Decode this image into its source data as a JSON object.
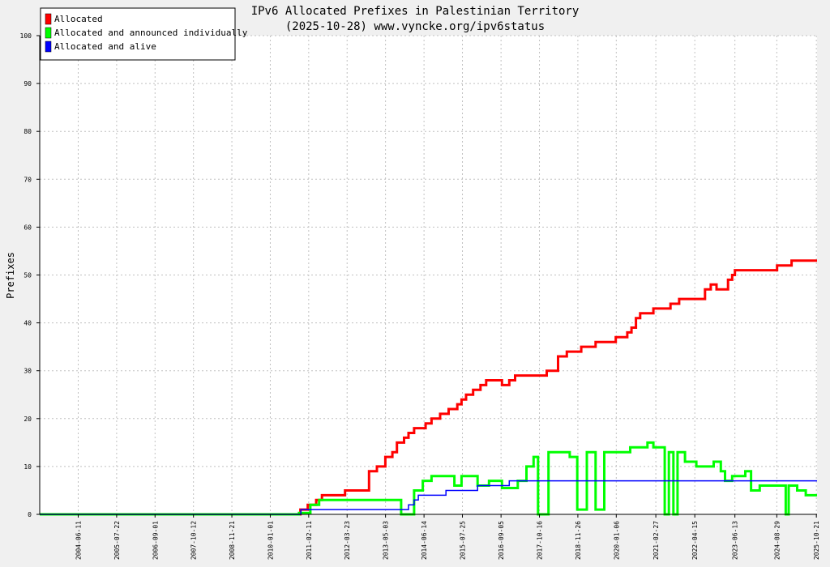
{
  "chart_data": {
    "type": "line",
    "title": "IPv6 Allocated Prefixes in Palestinian Territory",
    "subtitle": "(2025-10-28) www.vyncke.org/ipv6status",
    "ylabel": "Prefixes",
    "xlabel": "",
    "ylim": [
      0,
      100
    ],
    "xlim": [
      "2003-05-01",
      "2025-10-28"
    ],
    "y_ticks": [
      0,
      10,
      20,
      30,
      40,
      50,
      60,
      70,
      80,
      90,
      100
    ],
    "x_ticks": [
      "2004-06-11",
      "2005-07-22",
      "2006-09-01",
      "2007-10-12",
      "2008-11-21",
      "2010-01-01",
      "2011-02-11",
      "2012-03-23",
      "2013-05-03",
      "2014-06-14",
      "2015-07-25",
      "2016-09-05",
      "2017-10-16",
      "2018-11-26",
      "2020-01-06",
      "2021-02-27",
      "2022-04-15",
      "2023-06-13",
      "2024-08-29",
      "2025-10-21"
    ],
    "grid": true,
    "legend_position": "top-left",
    "series": [
      {
        "name": "Allocated",
        "color": "#ff0000",
        "points": [
          [
            "2003-05-01",
            0
          ],
          [
            "2010-11-15",
            0
          ],
          [
            "2010-11-15",
            1
          ],
          [
            "2011-02-01",
            1
          ],
          [
            "2011-02-01",
            2
          ],
          [
            "2011-05-01",
            2
          ],
          [
            "2011-05-01",
            3
          ],
          [
            "2011-07-01",
            3
          ],
          [
            "2011-07-01",
            4
          ],
          [
            "2012-03-01",
            4
          ],
          [
            "2012-03-01",
            5
          ],
          [
            "2012-11-10",
            5
          ],
          [
            "2012-11-10",
            9
          ],
          [
            "2013-02-01",
            9
          ],
          [
            "2013-02-01",
            10
          ],
          [
            "2013-05-01",
            10
          ],
          [
            "2013-05-01",
            12
          ],
          [
            "2013-07-15",
            12
          ],
          [
            "2013-07-15",
            13
          ],
          [
            "2013-09-01",
            13
          ],
          [
            "2013-09-01",
            15
          ],
          [
            "2013-11-15",
            15
          ],
          [
            "2013-11-15",
            16
          ],
          [
            "2014-01-01",
            16
          ],
          [
            "2014-01-01",
            17
          ],
          [
            "2014-03-01",
            17
          ],
          [
            "2014-03-01",
            18
          ],
          [
            "2014-07-01",
            18
          ],
          [
            "2014-07-01",
            19
          ],
          [
            "2014-09-01",
            19
          ],
          [
            "2014-09-01",
            20
          ],
          [
            "2014-12-01",
            20
          ],
          [
            "2014-12-01",
            21
          ],
          [
            "2015-03-01",
            21
          ],
          [
            "2015-03-01",
            22
          ],
          [
            "2015-06-01",
            22
          ],
          [
            "2015-06-01",
            23
          ],
          [
            "2015-07-15",
            23
          ],
          [
            "2015-07-15",
            24
          ],
          [
            "2015-09-01",
            24
          ],
          [
            "2015-09-01",
            25
          ],
          [
            "2015-11-15",
            25
          ],
          [
            "2015-11-15",
            26
          ],
          [
            "2016-02-01",
            26
          ],
          [
            "2016-02-01",
            27
          ],
          [
            "2016-04-01",
            27
          ],
          [
            "2016-04-01",
            28
          ],
          [
            "2016-09-15",
            28
          ],
          [
            "2016-09-15",
            27
          ],
          [
            "2016-12-01",
            27
          ],
          [
            "2016-12-01",
            28
          ],
          [
            "2017-02-01",
            28
          ],
          [
            "2017-02-01",
            29
          ],
          [
            "2018-01-01",
            29
          ],
          [
            "2018-01-01",
            30
          ],
          [
            "2018-05-01",
            30
          ],
          [
            "2018-05-01",
            33
          ],
          [
            "2018-08-01",
            33
          ],
          [
            "2018-08-01",
            34
          ],
          [
            "2019-01-01",
            34
          ],
          [
            "2019-01-01",
            35
          ],
          [
            "2019-06-01",
            35
          ],
          [
            "2019-06-01",
            36
          ],
          [
            "2020-01-01",
            36
          ],
          [
            "2020-01-01",
            37
          ],
          [
            "2020-05-01",
            37
          ],
          [
            "2020-05-01",
            38
          ],
          [
            "2020-06-15",
            38
          ],
          [
            "2020-06-15",
            39
          ],
          [
            "2020-08-01",
            39
          ],
          [
            "2020-08-01",
            41
          ],
          [
            "2020-09-15",
            41
          ],
          [
            "2020-09-15",
            42
          ],
          [
            "2021-02-01",
            42
          ],
          [
            "2021-02-01",
            43
          ],
          [
            "2021-08-01",
            43
          ],
          [
            "2021-08-01",
            44
          ],
          [
            "2021-11-01",
            44
          ],
          [
            "2021-11-01",
            45
          ],
          [
            "2022-08-01",
            45
          ],
          [
            "2022-08-01",
            47
          ],
          [
            "2022-10-01",
            47
          ],
          [
            "2022-10-01",
            48
          ],
          [
            "2022-12-01",
            48
          ],
          [
            "2022-12-01",
            47
          ],
          [
            "2023-04-01",
            47
          ],
          [
            "2023-04-01",
            49
          ],
          [
            "2023-05-15",
            49
          ],
          [
            "2023-05-15",
            50
          ],
          [
            "2023-06-13",
            50
          ],
          [
            "2023-06-13",
            51
          ],
          [
            "2024-09-01",
            51
          ],
          [
            "2024-09-01",
            52
          ],
          [
            "2025-02-01",
            52
          ],
          [
            "2025-02-01",
            53
          ],
          [
            "2025-10-28",
            53
          ]
        ]
      },
      {
        "name": "Allocated and announced individually",
        "color": "#00ff00",
        "points": [
          [
            "2003-05-01",
            0
          ],
          [
            "2010-11-01",
            0
          ],
          [
            "2010-11-01",
            0.3
          ],
          [
            "2011-03-01",
            0.3
          ],
          [
            "2011-03-01",
            2
          ],
          [
            "2011-06-01",
            2
          ],
          [
            "2011-06-01",
            3
          ],
          [
            "2013-10-15",
            3
          ],
          [
            "2013-10-15",
            0
          ],
          [
            "2014-03-01",
            0
          ],
          [
            "2014-03-01",
            5
          ],
          [
            "2014-06-01",
            5
          ],
          [
            "2014-06-01",
            7
          ],
          [
            "2014-09-01",
            7
          ],
          [
            "2014-09-01",
            8
          ],
          [
            "2015-05-01",
            8
          ],
          [
            "2015-05-01",
            6
          ],
          [
            "2015-07-15",
            6
          ],
          [
            "2015-07-15",
            8
          ],
          [
            "2016-01-01",
            8
          ],
          [
            "2016-01-01",
            6
          ],
          [
            "2016-05-01",
            6
          ],
          [
            "2016-05-01",
            7
          ],
          [
            "2016-09-15",
            7
          ],
          [
            "2016-09-15",
            5.5
          ],
          [
            "2017-03-01",
            5.5
          ],
          [
            "2017-03-01",
            7
          ],
          [
            "2017-06-01",
            7
          ],
          [
            "2017-06-01",
            10
          ],
          [
            "2017-08-15",
            10
          ],
          [
            "2017-08-15",
            12
          ],
          [
            "2017-10-01",
            12
          ],
          [
            "2017-10-01",
            0
          ],
          [
            "2018-01-20",
            0
          ],
          [
            "2018-01-20",
            13
          ],
          [
            "2018-09-01",
            13
          ],
          [
            "2018-09-01",
            12
          ],
          [
            "2018-11-20",
            12
          ],
          [
            "2018-11-20",
            1
          ],
          [
            "2019-03-01",
            1
          ],
          [
            "2019-03-01",
            13
          ],
          [
            "2019-06-01",
            13
          ],
          [
            "2019-06-01",
            1
          ],
          [
            "2019-09-01",
            1
          ],
          [
            "2019-09-01",
            13
          ],
          [
            "2020-06-01",
            13
          ],
          [
            "2020-06-01",
            14
          ],
          [
            "2020-12-01",
            14
          ],
          [
            "2020-12-01",
            15
          ],
          [
            "2021-02-01",
            15
          ],
          [
            "2021-02-01",
            14
          ],
          [
            "2021-06-01",
            14
          ],
          [
            "2021-06-01",
            0
          ],
          [
            "2021-07-15",
            0
          ],
          [
            "2021-07-15",
            13
          ],
          [
            "2021-09-01",
            13
          ],
          [
            "2021-09-01",
            0
          ],
          [
            "2021-10-15",
            0
          ],
          [
            "2021-10-15",
            13
          ],
          [
            "2022-01-01",
            13
          ],
          [
            "2022-01-01",
            11
          ],
          [
            "2022-05-01",
            11
          ],
          [
            "2022-05-01",
            10
          ],
          [
            "2022-11-01",
            10
          ],
          [
            "2022-11-01",
            11
          ],
          [
            "2023-01-15",
            11
          ],
          [
            "2023-01-15",
            9
          ],
          [
            "2023-03-01",
            9
          ],
          [
            "2023-03-01",
            7
          ],
          [
            "2023-05-15",
            7
          ],
          [
            "2023-05-15",
            8
          ],
          [
            "2023-10-01",
            8
          ],
          [
            "2023-10-01",
            9
          ],
          [
            "2023-12-01",
            9
          ],
          [
            "2023-12-01",
            5
          ],
          [
            "2024-03-01",
            5
          ],
          [
            "2024-03-01",
            6
          ],
          [
            "2024-12-01",
            6
          ],
          [
            "2024-12-01",
            0
          ],
          [
            "2025-01-01",
            0
          ],
          [
            "2025-01-01",
            6
          ],
          [
            "2025-04-01",
            6
          ],
          [
            "2025-04-01",
            5
          ],
          [
            "2025-07-01",
            5
          ],
          [
            "2025-07-01",
            4
          ],
          [
            "2025-10-28",
            4
          ]
        ]
      },
      {
        "name": "Allocated and alive",
        "color": "#0000ff",
        "points": [
          [
            "2003-05-01",
            0
          ],
          [
            "2010-11-20",
            0
          ],
          [
            "2010-11-20",
            1
          ],
          [
            "2014-01-01",
            1
          ],
          [
            "2014-01-01",
            2
          ],
          [
            "2014-03-01",
            2
          ],
          [
            "2014-03-01",
            3
          ],
          [
            "2014-04-15",
            3
          ],
          [
            "2014-04-15",
            4
          ],
          [
            "2015-02-01",
            4
          ],
          [
            "2015-02-01",
            5
          ],
          [
            "2016-01-01",
            5
          ],
          [
            "2016-01-01",
            6
          ],
          [
            "2016-12-01",
            6
          ],
          [
            "2016-12-01",
            7
          ],
          [
            "2025-10-28",
            7
          ]
        ]
      }
    ]
  }
}
